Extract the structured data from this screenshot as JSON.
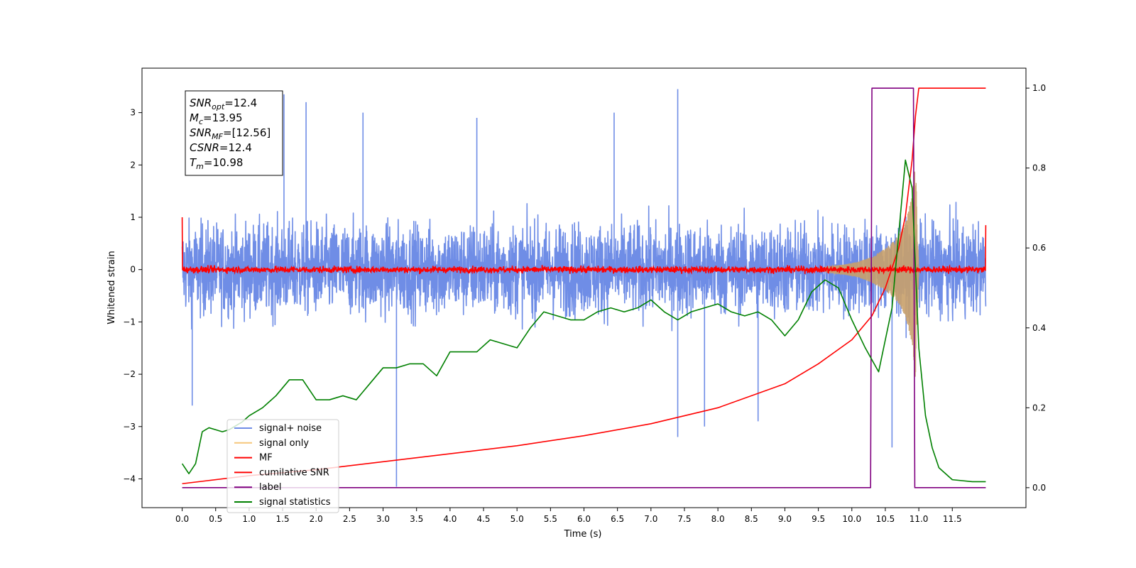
{
  "chart_data": {
    "type": "line",
    "xlabel": "Time (s)",
    "ylabel": "Whitened strain",
    "xlim": [
      -0.6,
      12.6
    ],
    "ylim": [
      -4.55,
      3.85
    ],
    "ylim_right": [
      -0.05,
      1.05
    ],
    "x_ticks": [
      "0.0",
      "0.5",
      "1.0",
      "1.5",
      "2.0",
      "2.5",
      "3.0",
      "3.5",
      "4.0",
      "4.5",
      "5.0",
      "5.5",
      "6.0",
      "6.5",
      "7.0",
      "7.5",
      "8.0",
      "8.5",
      "9.0",
      "9.5",
      "10.0",
      "10.5",
      "11.0",
      "11.5"
    ],
    "y_ticks": [
      3,
      2,
      1,
      0,
      -1,
      -2,
      -3,
      -4
    ],
    "y_ticks_labels": [
      "3",
      "2",
      "1",
      "0",
      "−1",
      "−2",
      "−3",
      "−4"
    ],
    "y_ticks_right": [
      1.0,
      0.8,
      0.6,
      0.4,
      0.2,
      0.0
    ],
    "y_ticks_right_labels": [
      "1.0",
      "0.8",
      "0.6",
      "0.4",
      "0.2",
      "0.0"
    ],
    "grid": false,
    "legend_position": "lower-left",
    "annotation": {
      "lines": [
        {
          "base": "SNR",
          "sub": "opt",
          "value": "=12.4"
        },
        {
          "base": "M",
          "sub": "c",
          "value": "=13.95"
        },
        {
          "base": "SNR",
          "sub": "MF",
          "value": "=[12.56]"
        },
        {
          "base": "CSNR",
          "sub": "",
          "value": "=12.4"
        },
        {
          "base": "T",
          "sub": "m",
          "value": "=10.98"
        }
      ]
    },
    "legend": [
      {
        "label": "signal+ noise",
        "color": "#6f8de6"
      },
      {
        "label": "signal only",
        "color": "#f6c77a"
      },
      {
        "label": "MF",
        "color": "#ff0000"
      },
      {
        "label": "cumilative SNR",
        "color": "#ff0000"
      },
      {
        "label": "label",
        "color": "#800080"
      },
      {
        "label": "signal statistics",
        "color": "#008000"
      }
    ],
    "series": [
      {
        "name": "signal+ noise",
        "axis": "left",
        "color": "#6f8de6",
        "style": "noise",
        "x_range": [
          0.0,
          12.0
        ],
        "envelope": [
          -1.9,
          1.85
        ],
        "spikes": [
          {
            "x": 3.2,
            "y": -4.15
          },
          {
            "x": 7.4,
            "y": 3.45
          },
          {
            "x": 7.4,
            "y": -3.2
          },
          {
            "x": 1.52,
            "y": 3.35
          },
          {
            "x": 1.85,
            "y": 3.2
          },
          {
            "x": 10.6,
            "y": -3.4
          },
          {
            "x": 7.8,
            "y": -3.0
          },
          {
            "x": 8.6,
            "y": -2.9
          },
          {
            "x": 0.15,
            "y": -2.6
          },
          {
            "x": 2.7,
            "y": 3.0
          },
          {
            "x": 6.45,
            "y": 3.0
          },
          {
            "x": 4.4,
            "y": 2.9
          }
        ]
      },
      {
        "name": "signal only",
        "axis": "left",
        "color": "#c8a06a",
        "style": "chirp",
        "x": [
          9.6,
          9.9,
          10.1,
          10.3,
          10.5,
          10.7,
          10.8,
          10.9,
          10.95,
          11.0
        ],
        "amplitude": [
          0.05,
          0.1,
          0.15,
          0.25,
          0.4,
          0.65,
          0.9,
          1.4,
          2.1,
          0.0
        ]
      },
      {
        "name": "MF",
        "axis": "left",
        "color": "#ff0000",
        "style": "mf",
        "x_range": [
          0.0,
          12.0
        ],
        "center": 0.0,
        "spread": 0.1,
        "start": [
          0.0,
          1.0
        ],
        "end": [
          12.0,
          0.85
        ]
      },
      {
        "name": "cumilative SNR",
        "axis": "right",
        "color": "#ff0000",
        "x": [
          0.0,
          1.0,
          2.0,
          3.0,
          4.0,
          5.0,
          6.0,
          7.0,
          8.0,
          9.0,
          9.5,
          10.0,
          10.3,
          10.5,
          10.7,
          10.8,
          10.9,
          10.95,
          11.0,
          12.0
        ],
        "y": [
          0.01,
          0.03,
          0.045,
          0.065,
          0.085,
          0.105,
          0.13,
          0.16,
          0.2,
          0.26,
          0.31,
          0.37,
          0.43,
          0.5,
          0.6,
          0.68,
          0.82,
          0.93,
          1.0,
          1.0
        ]
      },
      {
        "name": "label",
        "axis": "right",
        "color": "#800080",
        "x": [
          0.0,
          10.28,
          10.3,
          10.92,
          10.94,
          12.0
        ],
        "y": [
          0.0,
          0.0,
          1.0,
          1.0,
          0.0,
          0.0
        ]
      },
      {
        "name": "signal statistics",
        "axis": "right",
        "color": "#008000",
        "x": [
          0.0,
          0.1,
          0.2,
          0.3,
          0.4,
          0.5,
          0.6,
          0.7,
          0.8,
          0.9,
          1.0,
          1.2,
          1.4,
          1.6,
          1.8,
          2.0,
          2.2,
          2.4,
          2.6,
          2.8,
          3.0,
          3.2,
          3.4,
          3.6,
          3.8,
          4.0,
          4.2,
          4.4,
          4.6,
          4.8,
          5.0,
          5.2,
          5.4,
          5.6,
          5.8,
          6.0,
          6.2,
          6.4,
          6.6,
          6.8,
          7.0,
          7.2,
          7.4,
          7.6,
          7.8,
          8.0,
          8.2,
          8.4,
          8.6,
          8.8,
          9.0,
          9.2,
          9.4,
          9.6,
          9.8,
          10.0,
          10.2,
          10.4,
          10.6,
          10.8,
          10.9,
          11.0,
          11.1,
          11.2,
          11.3,
          11.5,
          11.8,
          12.0
        ],
        "y": [
          0.06,
          0.035,
          0.06,
          0.14,
          0.15,
          0.145,
          0.14,
          0.145,
          0.155,
          0.165,
          0.18,
          0.2,
          0.23,
          0.27,
          0.27,
          0.22,
          0.22,
          0.23,
          0.22,
          0.26,
          0.3,
          0.3,
          0.31,
          0.31,
          0.28,
          0.34,
          0.34,
          0.34,
          0.37,
          0.36,
          0.35,
          0.4,
          0.44,
          0.43,
          0.42,
          0.42,
          0.44,
          0.45,
          0.44,
          0.45,
          0.47,
          0.44,
          0.42,
          0.44,
          0.45,
          0.46,
          0.44,
          0.43,
          0.44,
          0.42,
          0.38,
          0.42,
          0.49,
          0.52,
          0.5,
          0.42,
          0.35,
          0.29,
          0.45,
          0.82,
          0.75,
          0.35,
          0.18,
          0.1,
          0.05,
          0.02,
          0.015,
          0.015
        ]
      }
    ]
  }
}
